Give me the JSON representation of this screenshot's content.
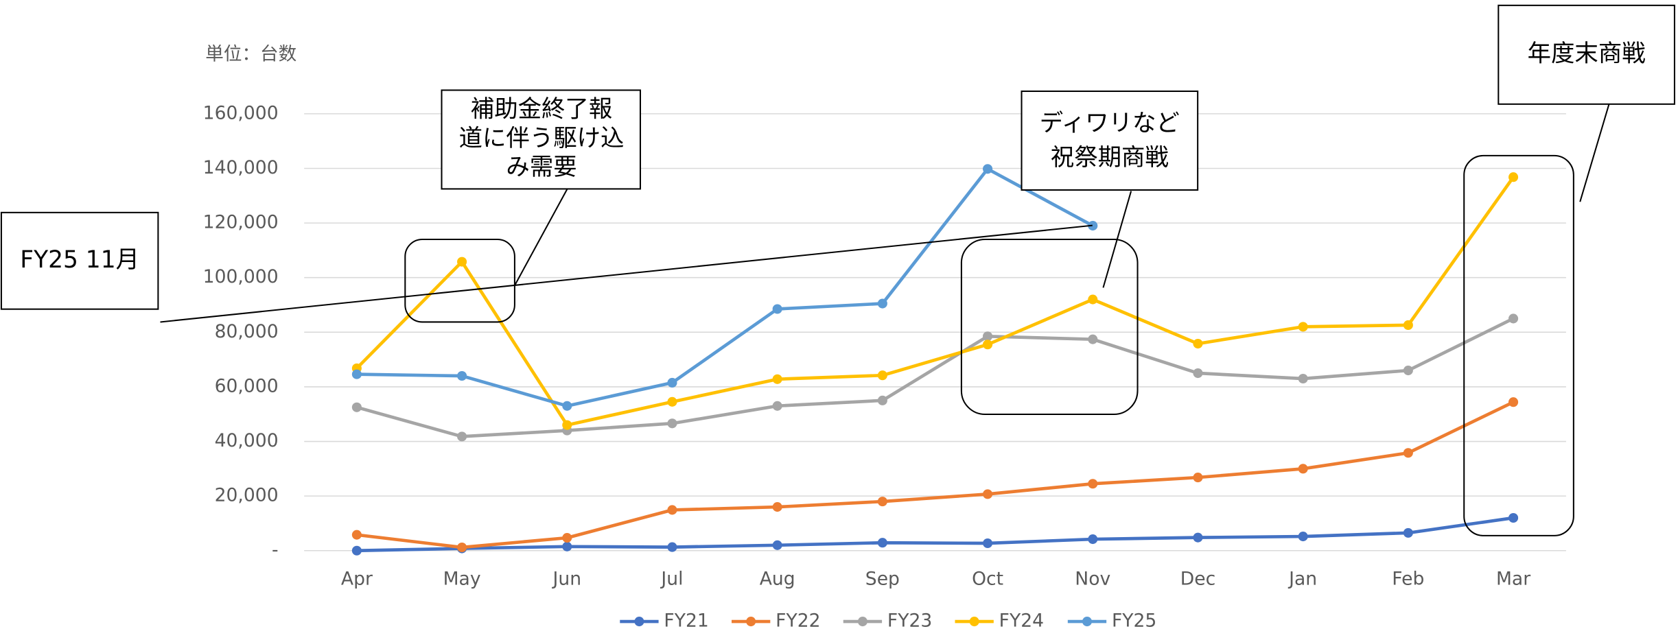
{
  "chart_data": {
    "type": "line",
    "unit_label": "単位：台数",
    "categories": [
      "Apr",
      "May",
      "Jun",
      "Jul",
      "Aug",
      "Sep",
      "Oct",
      "Nov",
      "Dec",
      "Jan",
      "Feb",
      "Mar"
    ],
    "series": [
      {
        "name": "FY21",
        "color": "#4472c4",
        "values": [
          0,
          800,
          1500,
          1300,
          2000,
          2900,
          2700,
          4200,
          4800,
          5200,
          6500,
          12000
        ]
      },
      {
        "name": "FY22",
        "color": "#ed7d31",
        "values": [
          5800,
          1200,
          4700,
          14900,
          16000,
          18000,
          20700,
          24500,
          26800,
          30000,
          35800,
          54400
        ]
      },
      {
        "name": "FY23",
        "color": "#a5a5a5",
        "values": [
          52500,
          41800,
          44000,
          46600,
          53000,
          55000,
          78500,
          77400,
          65000,
          63000,
          66000,
          85000
        ]
      },
      {
        "name": "FY24",
        "color": "#ffc000",
        "values": [
          66800,
          105800,
          46000,
          54500,
          62800,
          64200,
          75500,
          92000,
          75800,
          82000,
          82600,
          136800
        ]
      },
      {
        "name": "FY25",
        "color": "#5b9bd5",
        "values": [
          64600,
          64000,
          53000,
          61500,
          88500,
          90500,
          139800,
          119000,
          null,
          null,
          null,
          null
        ]
      }
    ],
    "ylim": [
      0,
      160000
    ],
    "yticks": [
      {
        "value": 0,
        "label": "-"
      },
      {
        "value": 20000,
        "label": "20,000"
      },
      {
        "value": 40000,
        "label": "40,000"
      },
      {
        "value": 60000,
        "label": "60,000"
      },
      {
        "value": 80000,
        "label": "80,000"
      },
      {
        "value": 100000,
        "label": "100,000"
      },
      {
        "value": 120000,
        "label": "120,000"
      },
      {
        "value": 140000,
        "label": "140,000"
      },
      {
        "value": 160000,
        "label": "160,000"
      }
    ],
    "grid": true,
    "legend": "bottom",
    "annotations": [
      {
        "lines": [
          "補助金終了報",
          "道に伴う駆け込",
          "み需要"
        ]
      },
      {
        "lines": [
          "ディワリなど",
          "祝祭期商戦"
        ]
      },
      {
        "lines": [
          "年度末商戦"
        ]
      },
      {
        "lines": [
          "FY25 11月"
        ]
      }
    ]
  }
}
